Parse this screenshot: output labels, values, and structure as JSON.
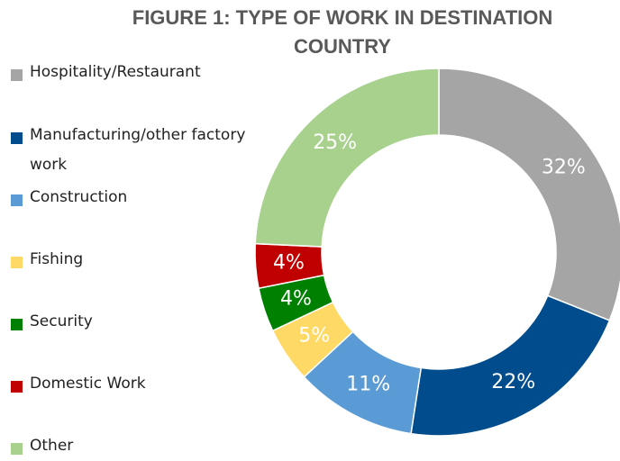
{
  "chart_data": {
    "type": "donut",
    "title": "FIGURE 1: TYPE OF WORK IN DESTINATION COUNTRY",
    "categories": [
      "Hospitality/Restaurant",
      "Manufacturing/other factory work",
      "Construction",
      "Fishing",
      "Security",
      "Domestic Work",
      "Other"
    ],
    "values": [
      32,
      22,
      11,
      5,
      4,
      4,
      25
    ],
    "value_labels": [
      "32%",
      "22%",
      "11%",
      "5%",
      "4%",
      "4%",
      "25%"
    ],
    "colors": [
      "#a5a5a5",
      "#004c8c",
      "#5b9bd5",
      "#ffd966",
      "#008000",
      "#c00000",
      "#a9d18e"
    ],
    "legend": "left"
  }
}
